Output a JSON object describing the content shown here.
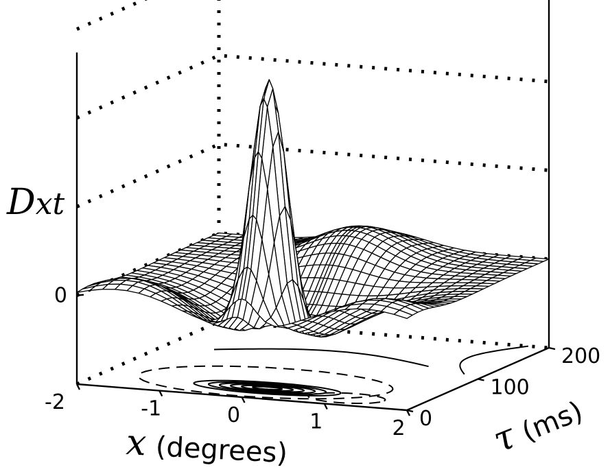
{
  "chart_data": {
    "type": "surface",
    "title": "",
    "xlabel_symbol": "x",
    "xlabel_unit": "(degrees)",
    "ylabel_symbol": "τ",
    "ylabel_unit": "(ms)",
    "zlabel_main": "D",
    "zlabel_sub": "xt",
    "x_ticks": [
      "-2",
      "-1",
      "0",
      "1",
      "2"
    ],
    "tau_ticks": [
      "0",
      "100",
      "200"
    ],
    "z_ticks": [
      "0"
    ],
    "xlim": [
      -2,
      2
    ],
    "tau_lim": [
      0,
      200
    ],
    "zlim": [
      -0.35,
      1.1
    ],
    "grid": true,
    "surface_function": "center-surround space-time receptive field: narrow positive peak near x=0, tau≈40 ms, with a broad negative surround and a positive rebound ridge at later tau",
    "contours_on_floor": true
  }
}
